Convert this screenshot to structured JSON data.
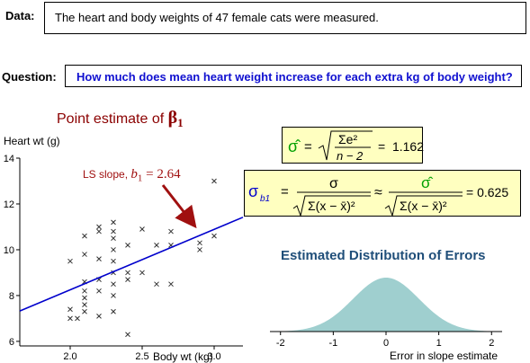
{
  "data_section": {
    "label": "Data:",
    "text": "The heart and body weights of 47 female cats were measured."
  },
  "question_section": {
    "label": "Question:",
    "text": "How  much does mean heart weight increase for each extra kg of body weight?"
  },
  "point_estimate": {
    "title_text": "Point estimate of ",
    "title_symbol": "β",
    "title_sub": "1"
  },
  "annotation": {
    "prefix": "LS slope, ",
    "symbol": "b",
    "sub": "1",
    "value": " = 2.64"
  },
  "sigma_formula": {
    "lhs": "σ̂",
    "eq": "=",
    "num": "Σe²",
    "den": "n − 2",
    "result": "=  1.162"
  },
  "sigma_b_formula": {
    "lhs": "σ",
    "lhs_sub": "b1",
    "eq": "=",
    "frac1_num": "σ",
    "frac1_den": "Σ(x − x̄)²",
    "approx": "≈",
    "frac2_num": "σ̂",
    "frac2_den": "Σ(x − x̄)²",
    "result": "= 0.625"
  },
  "distribution": {
    "title": "Estimated Distribution of Errors",
    "xlabel": "Error in slope estimate",
    "color": "#9fcfcf"
  },
  "chart_data": [
    {
      "type": "scatter",
      "ylabel": "Heart wt (g)",
      "xlabel": "Body wt (kg)",
      "xlim": [
        1.65,
        3.2
      ],
      "ylim": [
        5.8,
        14
      ],
      "xticks": [
        "2.0",
        "2.5",
        "3.0"
      ],
      "yticks": [
        "6",
        "8",
        "10",
        "12",
        "14"
      ],
      "points": [
        [
          2.0,
          9.5
        ],
        [
          2.0,
          7.4
        ],
        [
          2.0,
          7.0
        ],
        [
          2.05,
          7.0
        ],
        [
          2.1,
          7.3
        ],
        [
          2.1,
          7.6
        ],
        [
          2.1,
          7.9
        ],
        [
          2.1,
          8.2
        ],
        [
          2.1,
          8.6
        ],
        [
          2.1,
          9.8
        ],
        [
          2.1,
          10.6
        ],
        [
          2.2,
          7.1
        ],
        [
          2.2,
          8.2
        ],
        [
          2.2,
          8.7
        ],
        [
          2.2,
          9.6
        ],
        [
          2.2,
          10.8
        ],
        [
          2.2,
          11.0
        ],
        [
          2.3,
          7.3
        ],
        [
          2.3,
          8.0
        ],
        [
          2.3,
          8.5
        ],
        [
          2.3,
          9.0
        ],
        [
          2.3,
          9.5
        ],
        [
          2.3,
          10.0
        ],
        [
          2.3,
          10.5
        ],
        [
          2.3,
          10.8
        ],
        [
          2.3,
          11.2
        ],
        [
          2.4,
          6.3
        ],
        [
          2.4,
          8.7
        ],
        [
          2.4,
          9.0
        ],
        [
          2.4,
          10.2
        ],
        [
          2.5,
          9.0
        ],
        [
          2.5,
          10.9
        ],
        [
          2.6,
          8.5
        ],
        [
          2.6,
          10.2
        ],
        [
          2.7,
          8.5
        ],
        [
          2.7,
          10.2
        ],
        [
          2.7,
          10.8
        ],
        [
          2.9,
          10.0
        ],
        [
          2.9,
          10.3
        ],
        [
          3.0,
          10.6
        ],
        [
          3.0,
          13.0
        ]
      ],
      "regression": {
        "slope": 2.64,
        "x_range": [
          1.65,
          3.2
        ],
        "x_anchor": 2.36,
        "y_anchor": 9.2
      },
      "line_color": "#0000cc"
    },
    {
      "type": "area",
      "xlabel": "Error in slope estimate",
      "xlim": [
        -2.2,
        2.2
      ],
      "xticks": [
        "-2",
        "-1",
        "0",
        "1",
        "2"
      ],
      "distribution": "normal",
      "mean": 0,
      "sd": 0.625
    }
  ]
}
